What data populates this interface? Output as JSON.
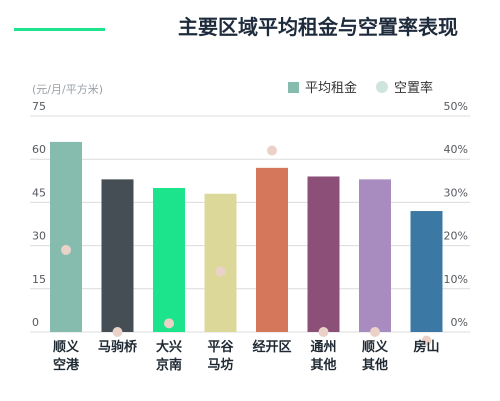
{
  "chart_data": {
    "type": "bar",
    "title": "主要区域平均租金与空置率表现",
    "unit_label": "(元/月/平方米)",
    "categories": [
      [
        "顺义",
        "空港"
      ],
      [
        "马驹桥"
      ],
      [
        "大兴",
        "京南"
      ],
      [
        "平谷",
        "马坊"
      ],
      [
        "经开区"
      ],
      [
        "通州",
        "其他"
      ],
      [
        "顺义",
        "其他"
      ],
      [
        "房山"
      ]
    ],
    "series": [
      {
        "name": "平均租金",
        "type": "bar",
        "axis": "left",
        "values": [
          66,
          53,
          50,
          48,
          57,
          54,
          53,
          42
        ],
        "colors": [
          "#86bcae",
          "#444e54",
          "#1be48c",
          "#dcd89a",
          "#d4775a",
          "#8c4f78",
          "#a88cc0",
          "#3c78a4"
        ]
      },
      {
        "name": "空置率",
        "type": "scatter",
        "axis": "right",
        "values": [
          19,
          0,
          2,
          14,
          42,
          0,
          0,
          -2
        ],
        "color": "#ead2c8"
      }
    ],
    "y_left": {
      "min": 0,
      "max": 75,
      "ticks": [
        "0",
        "15",
        "30",
        "45",
        "60",
        "75"
      ]
    },
    "y_right": {
      "min": 0,
      "max": 50,
      "ticks": [
        "0%",
        "10%",
        "20%",
        "30%",
        "40%",
        "50%"
      ]
    },
    "legend_position": "top-right",
    "grid": true,
    "accent_color": "#1be48c"
  }
}
